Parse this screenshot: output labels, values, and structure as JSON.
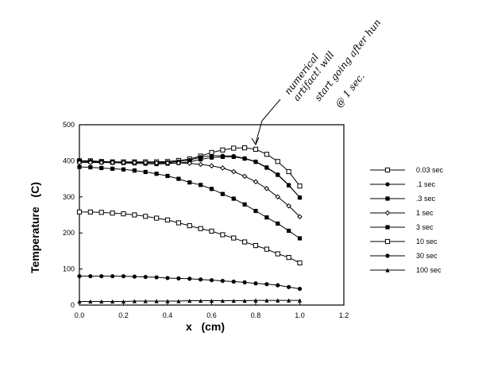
{
  "chart_data": {
    "type": "line",
    "title": "",
    "xlabel": "x   (cm)",
    "ylabel": "Temperature   (C)",
    "xlim": [
      0,
      1.2
    ],
    "ylim": [
      0,
      500
    ],
    "xticks": [
      "0.0",
      "0.2",
      "0.4",
      "0.6",
      "0.8",
      "1.0",
      "1.2"
    ],
    "xtick_values": [
      0,
      0.2,
      0.4,
      0.6,
      0.8,
      1.0,
      1.2
    ],
    "yticks": [
      "0",
      "100",
      "200",
      "300",
      "400",
      "500"
    ],
    "ytick_values": [
      0,
      100,
      200,
      300,
      400,
      500
    ],
    "grid": false,
    "legend_position": "right",
    "x": [
      0,
      0.05,
      0.1,
      0.15,
      0.2,
      0.25,
      0.3,
      0.35,
      0.4,
      0.45,
      0.5,
      0.55,
      0.6,
      0.65,
      0.7,
      0.75,
      0.8,
      0.85,
      0.9,
      0.95,
      1.0
    ],
    "series": [
      {
        "name": "0.03 sec",
        "marker": "open-square",
        "values": [
          400,
          400,
          398,
          397,
          397,
          397,
          397,
          397,
          398,
          401,
          405,
          413,
          423,
          430,
          435,
          436,
          432,
          418,
          398,
          370,
          330
        ]
      },
      {
        "name": ".1 sec",
        "marker": "filled-circle",
        "values": [
          400,
          399,
          398,
          397,
          396,
          396,
          395,
          395,
          396,
          398,
          402,
          410,
          414,
          414,
          413,
          407,
          398,
          382,
          362,
          333,
          298
        ]
      },
      {
        "name": ".3 sec",
        "marker": "filled-square",
        "values": [
          397,
          397,
          396,
          395,
          394,
          393,
          392,
          391,
          392,
          394,
          397,
          404,
          409,
          411,
          411,
          406,
          397,
          381,
          361,
          332,
          298
        ]
      },
      {
        "name": "1 sec",
        "marker": "open-diamond",
        "values": [
          395,
          395,
          395,
          395,
          395,
          395,
          395,
          394,
          394,
          394,
          393,
          390,
          386,
          380,
          370,
          357,
          342,
          323,
          300,
          275,
          245
        ]
      },
      {
        "name": "3 sec",
        "marker": "filled-square",
        "values": [
          383,
          382,
          380,
          378,
          376,
          373,
          369,
          364,
          358,
          350,
          340,
          333,
          322,
          308,
          295,
          279,
          261,
          243,
          226,
          206,
          185
        ]
      },
      {
        "name": "10 sec",
        "marker": "open-square",
        "values": [
          258,
          258,
          257,
          255,
          253,
          250,
          246,
          241,
          236,
          228,
          220,
          212,
          205,
          195,
          186,
          175,
          165,
          155,
          142,
          132,
          117
        ]
      },
      {
        "name": "30 sec",
        "marker": "filled-circle",
        "values": [
          80,
          80,
          80,
          80,
          80,
          79,
          78,
          77,
          75,
          74,
          73,
          71,
          69,
          67,
          65,
          63,
          60,
          58,
          55,
          50,
          45
        ]
      },
      {
        "name": "100 sec",
        "marker": "filled-triangle",
        "values": [
          10,
          10,
          10,
          10,
          10,
          11,
          11,
          11,
          11,
          11,
          12,
          12,
          12,
          12,
          12,
          12,
          13,
          13,
          13,
          13,
          13
        ]
      }
    ],
    "annotation": {
      "lines": [
        "numerical",
        "artifact! will",
        "start going after hun",
        "@ 1 sec."
      ],
      "points_to_x": 0.75,
      "points_to_y": 436
    }
  }
}
